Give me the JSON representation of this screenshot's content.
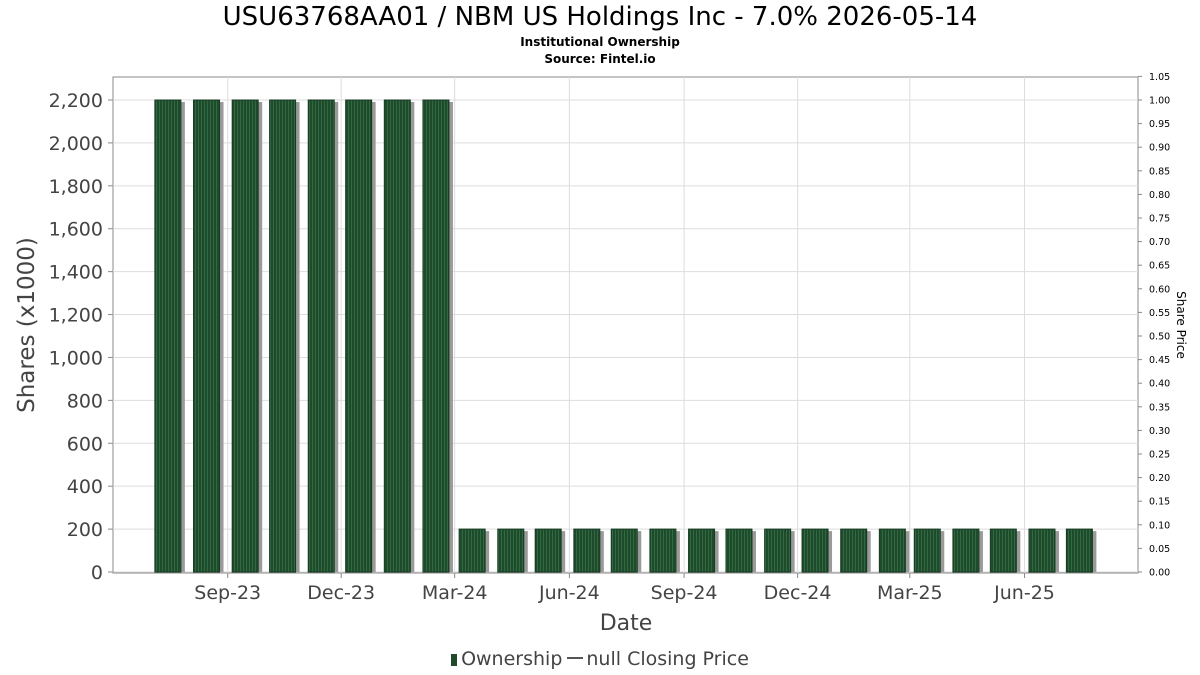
{
  "chart_data": {
    "type": "bar",
    "title": "USU63768AA01 / NBM US Holdings Inc - 7.0% 2026-05-14",
    "subtitle": "Institutional Ownership",
    "source": "Source: Fintel.io",
    "xlabel": "Date",
    "ylabel": "Shares (x1000)",
    "y2label": "Share Price",
    "ylim": [
      0,
      2300
    ],
    "y2lim": [
      0,
      1.05
    ],
    "yticks": [
      "0",
      "200",
      "400",
      "600",
      "800",
      "1,000",
      "1,200",
      "1,400",
      "1,600",
      "1,800",
      "2,000",
      "2,200"
    ],
    "ytick_values": [
      0,
      200,
      400,
      600,
      800,
      1000,
      1200,
      1400,
      1600,
      1800,
      2000,
      2200
    ],
    "y2ticks": [
      "0.00",
      "0.05",
      "0.10",
      "0.15",
      "0.20",
      "0.25",
      "0.30",
      "0.35",
      "0.40",
      "0.45",
      "0.50",
      "0.55",
      "0.60",
      "0.65",
      "0.70",
      "0.75",
      "0.80",
      "0.85",
      "0.90",
      "0.95",
      "1.00",
      "1.05"
    ],
    "x_start": "2023-06-01",
    "x_end": "2025-08-31",
    "xticks": [
      {
        "label": "Sep-23",
        "date": "2023-09-01"
      },
      {
        "label": "Dec-23",
        "date": "2023-12-01"
      },
      {
        "label": "Mar-24",
        "date": "2024-03-01"
      },
      {
        "label": "Jun-24",
        "date": "2024-06-01"
      },
      {
        "label": "Sep-24",
        "date": "2024-09-01"
      },
      {
        "label": "Dec-24",
        "date": "2024-12-01"
      },
      {
        "label": "Mar-25",
        "date": "2025-03-01"
      },
      {
        "label": "Jun-25",
        "date": "2025-06-01"
      }
    ],
    "series": [
      {
        "name": "Ownership",
        "color": "#1f4a2c",
        "points": [
          {
            "date": "2023-07-15",
            "value": 2200
          },
          {
            "date": "2023-08-15",
            "value": 2200
          },
          {
            "date": "2023-09-15",
            "value": 2200
          },
          {
            "date": "2023-10-15",
            "value": 2200
          },
          {
            "date": "2023-11-15",
            "value": 2200
          },
          {
            "date": "2023-12-15",
            "value": 2200
          },
          {
            "date": "2024-01-15",
            "value": 2200
          },
          {
            "date": "2024-02-15",
            "value": 2200
          },
          {
            "date": "2024-03-15",
            "value": 200
          },
          {
            "date": "2024-04-15",
            "value": 200
          },
          {
            "date": "2024-05-15",
            "value": 200
          },
          {
            "date": "2024-06-15",
            "value": 200
          },
          {
            "date": "2024-07-15",
            "value": 200
          },
          {
            "date": "2024-08-15",
            "value": 200
          },
          {
            "date": "2024-09-15",
            "value": 200
          },
          {
            "date": "2024-10-15",
            "value": 200
          },
          {
            "date": "2024-11-15",
            "value": 200
          },
          {
            "date": "2024-12-15",
            "value": 200
          },
          {
            "date": "2025-01-15",
            "value": 200
          },
          {
            "date": "2025-02-15",
            "value": 200
          },
          {
            "date": "2025-03-15",
            "value": 200
          },
          {
            "date": "2025-04-15",
            "value": 200
          },
          {
            "date": "2025-05-15",
            "value": 200
          },
          {
            "date": "2025-06-15",
            "value": 200
          },
          {
            "date": "2025-07-15",
            "value": 200
          }
        ]
      },
      {
        "name": "null Closing Price",
        "color": "#555555",
        "points": []
      }
    ],
    "legend_position": "bottom",
    "grid": true
  }
}
